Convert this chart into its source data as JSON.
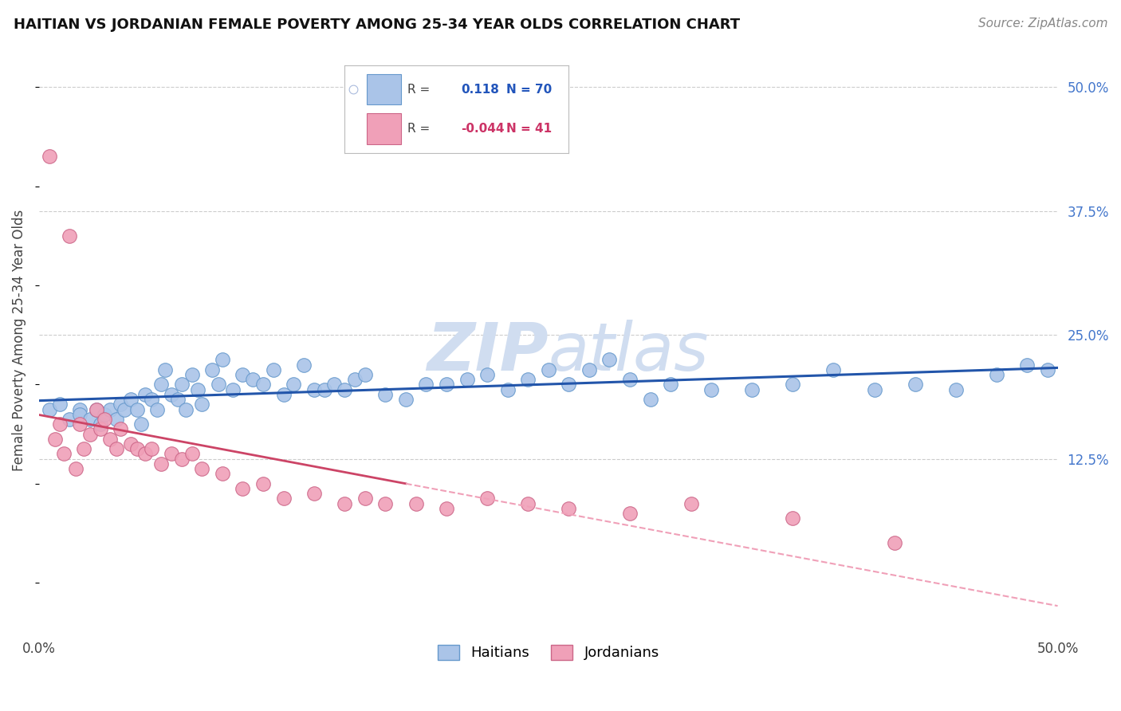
{
  "title": "HAITIAN VS JORDANIAN FEMALE POVERTY AMONG 25-34 YEAR OLDS CORRELATION CHART",
  "source": "Source: ZipAtlas.com",
  "ylabel": "Female Poverty Among 25-34 Year Olds",
  "xlim": [
    0.0,
    0.5
  ],
  "ylim": [
    -0.05,
    0.54
  ],
  "haitian_R": 0.118,
  "haitian_N": 70,
  "jordanian_R": -0.044,
  "jordanian_N": 41,
  "haitian_color": "#aac4e8",
  "haitian_edge": "#6699cc",
  "jordanian_color": "#f0a0b8",
  "jordanian_edge": "#cc6688",
  "trendline_haitian_color": "#2255aa",
  "trendline_jordanian_solid_color": "#cc4466",
  "trendline_jordanian_dash_color": "#f0a0b8",
  "watermark_color": "#d0ddf0",
  "grid_color": "#cccccc",
  "background_color": "#ffffff",
  "haitian_scatter_x": [
    0.005,
    0.01,
    0.015,
    0.02,
    0.02,
    0.025,
    0.028,
    0.03,
    0.032,
    0.035,
    0.038,
    0.04,
    0.042,
    0.045,
    0.048,
    0.05,
    0.052,
    0.055,
    0.058,
    0.06,
    0.062,
    0.065,
    0.068,
    0.07,
    0.072,
    0.075,
    0.078,
    0.08,
    0.085,
    0.088,
    0.09,
    0.095,
    0.1,
    0.105,
    0.11,
    0.115,
    0.12,
    0.125,
    0.13,
    0.135,
    0.14,
    0.145,
    0.15,
    0.155,
    0.16,
    0.17,
    0.18,
    0.19,
    0.2,
    0.21,
    0.22,
    0.23,
    0.24,
    0.25,
    0.26,
    0.27,
    0.28,
    0.29,
    0.3,
    0.31,
    0.33,
    0.35,
    0.37,
    0.39,
    0.41,
    0.43,
    0.45,
    0.47,
    0.485,
    0.495
  ],
  "haitian_scatter_y": [
    0.175,
    0.18,
    0.165,
    0.175,
    0.17,
    0.165,
    0.175,
    0.16,
    0.17,
    0.175,
    0.165,
    0.18,
    0.175,
    0.185,
    0.175,
    0.16,
    0.19,
    0.185,
    0.175,
    0.2,
    0.215,
    0.19,
    0.185,
    0.2,
    0.175,
    0.21,
    0.195,
    0.18,
    0.215,
    0.2,
    0.225,
    0.195,
    0.21,
    0.205,
    0.2,
    0.215,
    0.19,
    0.2,
    0.22,
    0.195,
    0.195,
    0.2,
    0.195,
    0.205,
    0.21,
    0.19,
    0.185,
    0.2,
    0.2,
    0.205,
    0.21,
    0.195,
    0.205,
    0.215,
    0.2,
    0.215,
    0.225,
    0.205,
    0.185,
    0.2,
    0.195,
    0.195,
    0.2,
    0.215,
    0.195,
    0.2,
    0.195,
    0.21,
    0.22,
    0.215
  ],
  "jordanian_scatter_x": [
    0.005,
    0.008,
    0.01,
    0.012,
    0.015,
    0.018,
    0.02,
    0.022,
    0.025,
    0.028,
    0.03,
    0.032,
    0.035,
    0.038,
    0.04,
    0.045,
    0.048,
    0.052,
    0.055,
    0.06,
    0.065,
    0.07,
    0.075,
    0.08,
    0.09,
    0.1,
    0.11,
    0.12,
    0.135,
    0.15,
    0.16,
    0.17,
    0.185,
    0.2,
    0.22,
    0.24,
    0.26,
    0.29,
    0.32,
    0.37,
    0.42
  ],
  "jordanian_scatter_y": [
    0.43,
    0.145,
    0.16,
    0.13,
    0.35,
    0.115,
    0.16,
    0.135,
    0.15,
    0.175,
    0.155,
    0.165,
    0.145,
    0.135,
    0.155,
    0.14,
    0.135,
    0.13,
    0.135,
    0.12,
    0.13,
    0.125,
    0.13,
    0.115,
    0.11,
    0.095,
    0.1,
    0.085,
    0.09,
    0.08,
    0.085,
    0.08,
    0.08,
    0.075,
    0.085,
    0.08,
    0.075,
    0.07,
    0.08,
    0.065,
    0.04
  ]
}
